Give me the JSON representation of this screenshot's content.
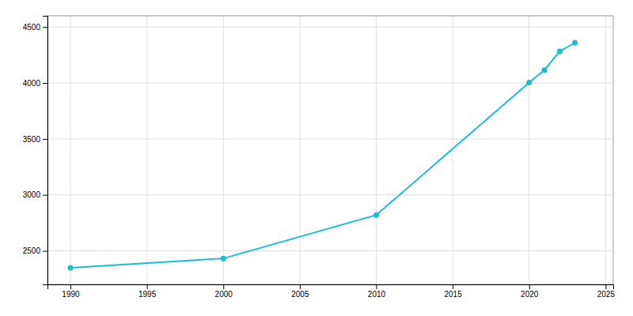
{
  "chart_data": {
    "type": "line",
    "x": [
      1990,
      2000,
      2010,
      2020,
      2021,
      2022,
      2023
    ],
    "values": [
      2348,
      2432,
      2820,
      4003,
      4115,
      4283,
      4360
    ],
    "color": "#17BECF",
    "marker": "circle",
    "xlim": [
      1988.5,
      2025.5
    ],
    "ylim": [
      2200,
      4600
    ],
    "xticks": [
      1990,
      1995,
      2000,
      2005,
      2010,
      2015,
      2020,
      2025
    ],
    "yticks": [
      2500,
      3000,
      3500,
      4000,
      4500
    ],
    "grid": true
  }
}
